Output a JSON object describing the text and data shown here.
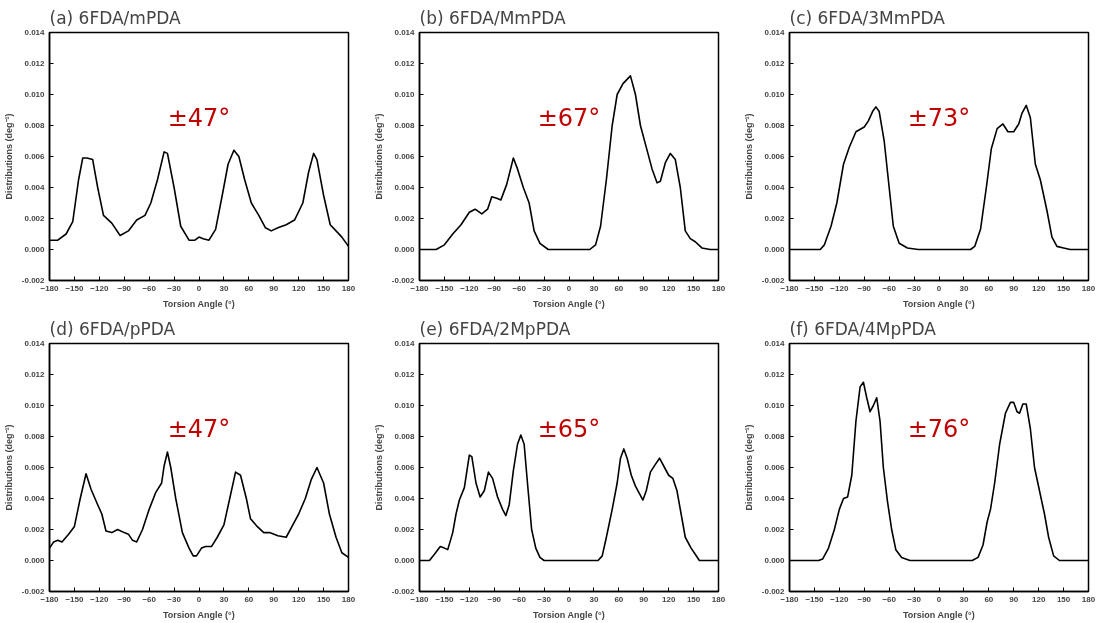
{
  "chart_data": [
    {
      "type": "line",
      "title": "(a) 6FDA/mPDA",
      "xlabel": "Torsion Angle (°)",
      "ylabel": "Distributions (deg⁻¹)",
      "annotations": [
        "±47°"
      ],
      "x": [
        -180,
        -170,
        -160,
        -152,
        -145,
        -140,
        -135,
        -128,
        -122,
        -115,
        -105,
        -95,
        -85,
        -75,
        -65,
        -58,
        -50,
        -42,
        -38,
        -30,
        -22,
        -12,
        -5,
        0,
        5,
        12,
        20,
        28,
        35,
        42,
        48,
        55,
        63,
        72,
        80,
        87,
        95,
        105,
        115,
        125,
        132,
        138,
        142,
        150,
        158,
        165,
        172,
        180
      ],
      "series": [
        {
          "color": "#000000",
          "values": [
            0.0006,
            0.0006,
            0.001,
            0.0018,
            0.0045,
            0.0059,
            0.0059,
            0.0058,
            0.004,
            0.0022,
            0.0017,
            0.0009,
            0.0012,
            0.0019,
            0.0022,
            0.003,
            0.0045,
            0.0063,
            0.0062,
            0.004,
            0.0015,
            0.0006,
            0.0006,
            0.0008,
            0.0007,
            0.0006,
            0.0013,
            0.0035,
            0.0055,
            0.0064,
            0.006,
            0.0045,
            0.003,
            0.0022,
            0.0014,
            0.0012,
            0.0014,
            0.0016,
            0.0019,
            0.003,
            0.005,
            0.0062,
            0.0058,
            0.0035,
            0.0016,
            0.0012,
            0.0008,
            0.0002
          ]
        }
      ],
      "xlim": [
        -180,
        180
      ],
      "xticks": [
        -180,
        -150,
        -120,
        -90,
        -60,
        -30,
        0,
        30,
        60,
        90,
        120,
        150,
        180
      ],
      "ylim": [
        -0.002,
        0.014
      ],
      "yticks": [
        {
          "value": -0.002,
          "label": "-0.002"
        },
        {
          "value": 0,
          "label": "0.000"
        },
        {
          "value": 0.002,
          "label": "0.002"
        },
        {
          "value": 0.004,
          "label": "0.004"
        },
        {
          "value": 0.006,
          "label": "0.006"
        },
        {
          "value": 0.008,
          "label": "0.008"
        },
        {
          "value": 0.01,
          "label": "0.010"
        },
        {
          "value": 0.012,
          "label": "0.012"
        },
        {
          "value": 0.014,
          "label": "0.014"
        }
      ]
    },
    {
      "type": "line",
      "title": "(b) 6FDA/MmPDA",
      "xlabel": "Torsion Angle (°)",
      "ylabel": "Distributions (deg⁻¹)",
      "annotations": [
        "±67°"
      ],
      "x": [
        -180,
        -160,
        -150,
        -140,
        -130,
        -120,
        -113,
        -105,
        -98,
        -93,
        -87,
        -82,
        -75,
        -67,
        -62,
        -55,
        -48,
        -42,
        -35,
        -25,
        0,
        25,
        32,
        38,
        45,
        52,
        58,
        65,
        74,
        80,
        86,
        92,
        100,
        106,
        110,
        116,
        122,
        128,
        134,
        140,
        146,
        152,
        160,
        170,
        180
      ],
      "series": [
        {
          "color": "#000000",
          "values": [
            0,
            0,
            0.0003,
            0.001,
            0.0016,
            0.0024,
            0.0026,
            0.0023,
            0.0026,
            0.0034,
            0.0033,
            0.0032,
            0.0042,
            0.0059,
            0.0052,
            0.004,
            0.003,
            0.0012,
            0.0004,
            0,
            0,
            0,
            0.0003,
            0.0015,
            0.0045,
            0.008,
            0.01,
            0.0107,
            0.0112,
            0.01,
            0.008,
            0.0068,
            0.0052,
            0.0043,
            0.0044,
            0.0056,
            0.0062,
            0.0058,
            0.004,
            0.0012,
            0.0007,
            0.0005,
            0.0001,
            0,
            0
          ]
        }
      ],
      "xlim": [
        -180,
        180
      ],
      "xticks": [
        -180,
        -150,
        -120,
        -90,
        -60,
        -30,
        0,
        30,
        60,
        90,
        120,
        150,
        180
      ],
      "ylim": [
        -0.002,
        0.014
      ],
      "yticks": [
        {
          "value": -0.002,
          "label": "-0.002"
        },
        {
          "value": 0,
          "label": "0.000"
        },
        {
          "value": 0.002,
          "label": "0.002"
        },
        {
          "value": 0.004,
          "label": "0.004"
        },
        {
          "value": 0.006,
          "label": "0.006"
        },
        {
          "value": 0.008,
          "label": "0.008"
        },
        {
          "value": 0.01,
          "label": "0.010"
        },
        {
          "value": 0.012,
          "label": "0.012"
        },
        {
          "value": 0.014,
          "label": "0.014"
        }
      ]
    },
    {
      "type": "line",
      "title": "(c) 6FDA/3MmPDA",
      "xlabel": "Torsion Angle (°)",
      "ylabel": "Distributions (deg⁻¹)",
      "annotations": [
        "±73°"
      ],
      "x": [
        -180,
        -143,
        -138,
        -130,
        -123,
        -115,
        -108,
        -100,
        -90,
        -85,
        -80,
        -76,
        -72,
        -66,
        -60,
        -55,
        -48,
        -38,
        -25,
        0,
        38,
        43,
        50,
        57,
        63,
        70,
        77,
        83,
        90,
        96,
        100,
        105,
        110,
        116,
        122,
        130,
        136,
        142,
        150,
        158,
        180
      ],
      "series": [
        {
          "color": "#000000",
          "values": [
            0,
            0,
            0.0003,
            0.0015,
            0.003,
            0.0055,
            0.0066,
            0.0076,
            0.0079,
            0.0083,
            0.0089,
            0.0092,
            0.0089,
            0.007,
            0.004,
            0.0015,
            0.0004,
            0.0001,
            0,
            0,
            0,
            0.0002,
            0.0013,
            0.004,
            0.0065,
            0.0078,
            0.0081,
            0.0076,
            0.0076,
            0.0081,
            0.0088,
            0.0093,
            0.0085,
            0.0055,
            0.0045,
            0.0025,
            0.0008,
            0.0002,
            0.0001,
            0,
            0
          ]
        }
      ],
      "xlim": [
        -180,
        180
      ],
      "xticks": [
        -180,
        -150,
        -120,
        -90,
        -60,
        -30,
        0,
        30,
        60,
        90,
        120,
        150,
        180
      ],
      "ylim": [
        -0.002,
        0.014
      ],
      "yticks": [
        {
          "value": -0.002,
          "label": "-0.002"
        },
        {
          "value": 0,
          "label": "0.000"
        },
        {
          "value": 0.002,
          "label": "0.002"
        },
        {
          "value": 0.004,
          "label": "0.004"
        },
        {
          "value": 0.006,
          "label": "0.006"
        },
        {
          "value": 0.008,
          "label": "0.008"
        },
        {
          "value": 0.01,
          "label": "0.010"
        },
        {
          "value": 0.012,
          "label": "0.012"
        },
        {
          "value": 0.014,
          "label": "0.014"
        }
      ]
    },
    {
      "type": "line",
      "title": "(d) 6FDA/pPDA",
      "xlabel": "Torsion Angle (°)",
      "ylabel": "Distributions (deg⁻¹)",
      "annotations": [
        "±47°"
      ],
      "x": [
        -180,
        -175,
        -170,
        -165,
        -157,
        -150,
        -143,
        -136,
        -130,
        -122,
        -117,
        -112,
        -105,
        -98,
        -90,
        -85,
        -80,
        -75,
        -68,
        -60,
        -52,
        -45,
        -42,
        -38,
        -34,
        -28,
        -20,
        -12,
        -7,
        -3,
        3,
        8,
        15,
        22,
        30,
        37,
        44,
        50,
        57,
        62,
        70,
        78,
        85,
        95,
        105,
        112,
        120,
        128,
        135,
        142,
        150,
        157,
        165,
        172,
        180
      ],
      "series": [
        {
          "color": "#000000",
          "values": [
            0.0008,
            0.0012,
            0.0013,
            0.0012,
            0.0017,
            0.0022,
            0.004,
            0.0056,
            0.0046,
            0.0036,
            0.003,
            0.0019,
            0.0018,
            0.002,
            0.0018,
            0.0017,
            0.0013,
            0.0012,
            0.002,
            0.0033,
            0.0044,
            0.005,
            0.0061,
            0.007,
            0.006,
            0.004,
            0.0018,
            0.0008,
            0.0003,
            0.0003,
            0.0008,
            0.0009,
            0.0009,
            0.0015,
            0.0023,
            0.004,
            0.0057,
            0.0055,
            0.004,
            0.0027,
            0.0022,
            0.0018,
            0.0018,
            0.0016,
            0.0015,
            0.0022,
            0.003,
            0.004,
            0.0052,
            0.006,
            0.005,
            0.003,
            0.0015,
            0.0005,
            0.0002
          ]
        }
      ],
      "xlim": [
        -180,
        180
      ],
      "xticks": [
        -180,
        -150,
        -120,
        -90,
        -60,
        -30,
        0,
        30,
        60,
        90,
        120,
        150,
        180
      ],
      "ylim": [
        -0.002,
        0.014
      ],
      "yticks": [
        {
          "value": -0.002,
          "label": "-0.002"
        },
        {
          "value": 0,
          "label": "0.000"
        },
        {
          "value": 0.002,
          "label": "0.002"
        },
        {
          "value": 0.004,
          "label": "0.004"
        },
        {
          "value": 0.006,
          "label": "0.006"
        },
        {
          "value": 0.008,
          "label": "0.008"
        },
        {
          "value": 0.01,
          "label": "0.010"
        },
        {
          "value": 0.012,
          "label": "0.012"
        },
        {
          "value": 0.014,
          "label": "0.014"
        }
      ]
    },
    {
      "type": "line",
      "title": "(e) 6FDA/2MpPDA",
      "xlabel": "Torsion Angle (°)",
      "ylabel": "Distributions (deg⁻¹)",
      "annotations": [
        "±65°"
      ],
      "x": [
        -180,
        -168,
        -162,
        -155,
        -150,
        -146,
        -140,
        -136,
        -132,
        -126,
        -120,
        -117,
        -112,
        -107,
        -102,
        -97,
        -92,
        -86,
        -80,
        -76,
        -72,
        -67,
        -62,
        -58,
        -54,
        -50,
        -45,
        -40,
        -35,
        -30,
        0,
        35,
        40,
        45,
        52,
        58,
        62,
        66,
        70,
        75,
        80,
        85,
        89,
        93,
        98,
        104,
        109,
        115,
        120,
        125,
        130,
        135,
        140,
        147,
        152,
        157,
        180
      ],
      "series": [
        {
          "color": "#000000",
          "values": [
            0,
            0,
            0.0004,
            0.0009,
            0.0008,
            0.0007,
            0.0018,
            0.003,
            0.0039,
            0.0047,
            0.0068,
            0.0067,
            0.005,
            0.0041,
            0.0045,
            0.0057,
            0.0053,
            0.0041,
            0.0033,
            0.0029,
            0.0036,
            0.0058,
            0.0075,
            0.0081,
            0.0075,
            0.005,
            0.002,
            0.0008,
            0.0002,
            0,
            0,
            0,
            0.0003,
            0.0015,
            0.0033,
            0.005,
            0.0066,
            0.0072,
            0.0066,
            0.0055,
            0.0048,
            0.0043,
            0.0039,
            0.0045,
            0.0057,
            0.0062,
            0.0066,
            0.006,
            0.0055,
            0.0053,
            0.0045,
            0.003,
            0.0015,
            0.0008,
            0.0004,
            0,
            0
          ]
        }
      ],
      "xlim": [
        -180,
        180
      ],
      "xticks": [
        -180,
        -150,
        -120,
        -90,
        -60,
        -30,
        0,
        30,
        60,
        90,
        120,
        150,
        180
      ],
      "ylim": [
        -0.002,
        0.014
      ],
      "yticks": [
        {
          "value": -0.002,
          "label": "-0.002"
        },
        {
          "value": 0,
          "label": "0.000"
        },
        {
          "value": 0.002,
          "label": "0.002"
        },
        {
          "value": 0.004,
          "label": "0.004"
        },
        {
          "value": 0.006,
          "label": "0.006"
        },
        {
          "value": 0.008,
          "label": "0.008"
        },
        {
          "value": 0.01,
          "label": "0.010"
        },
        {
          "value": 0.012,
          "label": "0.012"
        },
        {
          "value": 0.014,
          "label": "0.014"
        }
      ]
    },
    {
      "type": "line",
      "title": "(f) 6FDA/4MpPDA",
      "xlabel": "Torsion Angle (°)",
      "ylabel": "Distributions (deg⁻¹)",
      "annotations": [
        "±76°"
      ],
      "x": [
        -180,
        -145,
        -140,
        -133,
        -126,
        -120,
        -115,
        -110,
        -105,
        -100,
        -95,
        -91,
        -87,
        -83,
        -79,
        -75,
        -71,
        -67,
        -62,
        -57,
        -52,
        -45,
        -35,
        0,
        40,
        47,
        53,
        58,
        62,
        67,
        73,
        80,
        86,
        90,
        94,
        97,
        101,
        105,
        110,
        115,
        121,
        127,
        132,
        138,
        145,
        180
      ],
      "series": [
        {
          "color": "#000000",
          "values": [
            0,
            0,
            0.0001,
            0.0008,
            0.002,
            0.0033,
            0.004,
            0.0041,
            0.0055,
            0.009,
            0.0112,
            0.0115,
            0.0105,
            0.0096,
            0.01,
            0.0105,
            0.009,
            0.006,
            0.0038,
            0.002,
            0.0007,
            0.0002,
            0,
            0,
            0,
            0.0002,
            0.001,
            0.0025,
            0.0033,
            0.005,
            0.0075,
            0.0095,
            0.0102,
            0.0102,
            0.0096,
            0.0095,
            0.0101,
            0.0101,
            0.0085,
            0.006,
            0.0045,
            0.003,
            0.0015,
            0.0003,
            0,
            0
          ]
        }
      ],
      "xlim": [
        -180,
        180
      ],
      "xticks": [
        -180,
        -150,
        -120,
        -90,
        -60,
        -30,
        0,
        30,
        60,
        90,
        120,
        150,
        180
      ],
      "ylim": [
        -0.002,
        0.014
      ],
      "yticks": [
        {
          "value": -0.002,
          "label": "-0.002"
        },
        {
          "value": 0,
          "label": "0.000"
        },
        {
          "value": 0.002,
          "label": "0.002"
        },
        {
          "value": 0.004,
          "label": "0.004"
        },
        {
          "value": 0.006,
          "label": "0.006"
        },
        {
          "value": 0.008,
          "label": "0.008"
        },
        {
          "value": 0.01,
          "label": "0.010"
        },
        {
          "value": 0.012,
          "label": "0.012"
        },
        {
          "value": 0.014,
          "label": "0.014"
        }
      ]
    }
  ]
}
